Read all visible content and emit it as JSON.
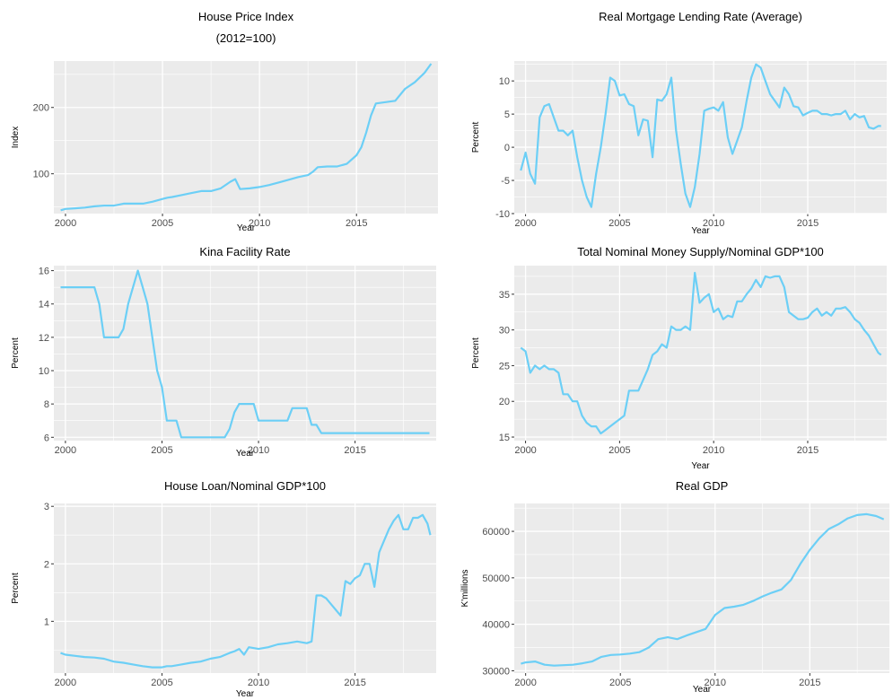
{
  "chart_data": [
    {
      "type": "line",
      "title": "House Price Index",
      "subtitle": "(2012=100)",
      "xlabel": "Year",
      "ylabel": "Index",
      "xlim": [
        1999.4,
        2019.2
      ],
      "ylim": [
        40,
        270
      ],
      "xticks": [
        2000,
        2005,
        2010,
        2015
      ],
      "yticks": [
        100,
        200
      ],
      "grid": true,
      "color": "#6ccff6",
      "series": [
        {
          "x": [
            1999.75,
            2000.0,
            2000.5,
            2001.0,
            2001.5,
            2002.0,
            2002.5,
            2003.0,
            2003.5,
            2004.0,
            2004.5,
            2005.0,
            2005.25,
            2005.5,
            2006.0,
            2006.5,
            2007.0,
            2007.5,
            2008.0,
            2008.5,
            2008.75,
            2009.0,
            2009.5,
            2010.0,
            2010.5,
            2011.0,
            2011.5,
            2012.0,
            2012.5,
            2012.75,
            2013.0,
            2013.5,
            2014.0,
            2014.5,
            2015.0,
            2015.25,
            2015.5,
            2015.75,
            2016.0,
            2016.5,
            2017.0,
            2017.5,
            2018.0,
            2018.5,
            2018.85
          ],
          "y": [
            45,
            47,
            48,
            49,
            51,
            52,
            52,
            55,
            55,
            55,
            58,
            62,
            64,
            65,
            68,
            71,
            74,
            74,
            78,
            88,
            92,
            77,
            78,
            80,
            83,
            87,
            91,
            95,
            98,
            103,
            110,
            111,
            111,
            115,
            128,
            140,
            162,
            188,
            206,
            208,
            210,
            228,
            238,
            252,
            266
          ]
        }
      ]
    },
    {
      "type": "line",
      "title": "Real Mortgage Lending Rate (Average)",
      "xlabel": "Year",
      "ylabel": "Percent",
      "xlim": [
        1999.4,
        2019.2
      ],
      "ylim": [
        -10,
        13
      ],
      "xticks": [
        2000,
        2005,
        2010,
        2015
      ],
      "yticks": [
        -10,
        -5,
        0,
        5,
        10
      ],
      "grid": true,
      "color": "#6ccff6",
      "series": [
        {
          "x": [
            1999.75,
            2000.0,
            2000.25,
            2000.5,
            2000.75,
            2001.0,
            2001.25,
            2001.5,
            2001.75,
            2002.0,
            2002.25,
            2002.5,
            2002.75,
            2003.0,
            2003.25,
            2003.5,
            2003.75,
            2004.0,
            2004.25,
            2004.5,
            2004.75,
            2005.0,
            2005.25,
            2005.5,
            2005.75,
            2006.0,
            2006.25,
            2006.5,
            2006.75,
            2007.0,
            2007.25,
            2007.5,
            2007.75,
            2008.0,
            2008.25,
            2008.5,
            2008.75,
            2009.0,
            2009.25,
            2009.5,
            2009.75,
            2010.0,
            2010.25,
            2010.5,
            2010.75,
            2011.0,
            2011.25,
            2011.5,
            2011.75,
            2012.0,
            2012.25,
            2012.5,
            2012.75,
            2013.0,
            2013.25,
            2013.5,
            2013.75,
            2014.0,
            2014.25,
            2014.5,
            2014.75,
            2015.0,
            2015.25,
            2015.5,
            2015.75,
            2016.0,
            2016.25,
            2016.5,
            2016.75,
            2017.0,
            2017.25,
            2017.5,
            2017.75,
            2018.0,
            2018.25,
            2018.5,
            2018.75,
            2018.9
          ],
          "y": [
            -3.5,
            -0.8,
            -4,
            -5.5,
            4.5,
            6.2,
            6.5,
            4.5,
            2.5,
            2.5,
            1.8,
            2.5,
            -1.5,
            -5,
            -7.5,
            -9,
            -4,
            0,
            5,
            10.5,
            10,
            7.8,
            8,
            6.5,
            6.2,
            1.8,
            4.2,
            4,
            -1.5,
            7.2,
            7,
            8,
            10.5,
            2.5,
            -2.5,
            -7,
            -9,
            -6,
            -1,
            5.5,
            5.8,
            6,
            5.5,
            6.8,
            1.5,
            -1,
            1,
            3,
            7,
            10.5,
            12.5,
            12,
            10,
            8,
            7,
            6,
            9,
            8,
            6.2,
            6,
            4.8,
            5.2,
            5.5,
            5.5,
            5,
            5,
            4.8,
            5,
            5,
            5.5,
            4.2,
            5,
            4.5,
            4.7,
            3,
            2.8,
            3.2,
            3.2
          ]
        }
      ]
    },
    {
      "type": "line",
      "title": "Kina Facility Rate",
      "xlabel": "Year",
      "ylabel": "Percent",
      "xlim": [
        1999.4,
        2019.2
      ],
      "ylim": [
        5.8,
        16.3
      ],
      "xticks": [
        2000,
        2005,
        2010,
        2015
      ],
      "yticks": [
        6,
        8,
        10,
        12,
        14,
        16
      ],
      "grid": true,
      "color": "#6ccff6",
      "series": [
        {
          "x": [
            1999.75,
            2000.5,
            2001.0,
            2001.5,
            2001.75,
            2002.0,
            2002.5,
            2002.75,
            2003.0,
            2003.25,
            2003.5,
            2003.75,
            2004.0,
            2004.25,
            2004.5,
            2004.75,
            2005.0,
            2005.25,
            2005.5,
            2005.75,
            2006.0,
            2006.5,
            2007.0,
            2007.5,
            2008.0,
            2008.25,
            2008.5,
            2008.75,
            2009.0,
            2009.5,
            2009.75,
            2010.0,
            2010.5,
            2011.0,
            2011.5,
            2011.75,
            2012.0,
            2012.5,
            2012.75,
            2013.0,
            2013.25,
            2013.5,
            2014.0,
            2015.0,
            2016.0,
            2017.0,
            2018.0,
            2018.85
          ],
          "y": [
            15,
            15,
            15,
            15,
            14,
            12,
            12,
            12,
            12.5,
            14,
            15,
            16,
            15,
            14,
            12,
            10,
            9,
            7,
            7,
            7,
            6,
            6,
            6,
            6,
            6,
            6,
            6.5,
            7.5,
            8,
            8,
            8,
            7,
            7,
            7,
            7,
            7.75,
            7.75,
            7.75,
            6.75,
            6.75,
            6.25,
            6.25,
            6.25,
            6.25,
            6.25,
            6.25,
            6.25,
            6.25
          ]
        }
      ]
    },
    {
      "type": "line",
      "title": "Total Nominal Money Supply/Nominal GDP*100",
      "xlabel": "Year",
      "ylabel": "Percent",
      "xlim": [
        1999.4,
        2019.2
      ],
      "ylim": [
        14.5,
        39
      ],
      "xticks": [
        2000,
        2005,
        2010,
        2015
      ],
      "yticks": [
        15,
        20,
        25,
        30,
        35
      ],
      "grid": true,
      "color": "#6ccff6",
      "series": [
        {
          "x": [
            1999.75,
            2000.0,
            2000.25,
            2000.5,
            2000.75,
            2001.0,
            2001.25,
            2001.5,
            2001.75,
            2002.0,
            2002.25,
            2002.5,
            2002.75,
            2003.0,
            2003.25,
            2003.5,
            2003.75,
            2004.0,
            2004.25,
            2004.5,
            2004.75,
            2005.0,
            2005.25,
            2005.5,
            2005.75,
            2006.0,
            2006.25,
            2006.5,
            2006.75,
            2007.0,
            2007.25,
            2007.5,
            2007.75,
            2008.0,
            2008.25,
            2008.5,
            2008.75,
            2009.0,
            2009.25,
            2009.5,
            2009.75,
            2010.0,
            2010.25,
            2010.5,
            2010.75,
            2011.0,
            2011.25,
            2011.5,
            2011.75,
            2012.0,
            2012.25,
            2012.5,
            2012.75,
            2013.0,
            2013.25,
            2013.5,
            2013.75,
            2014.0,
            2014.25,
            2014.5,
            2014.75,
            2015.0,
            2015.25,
            2015.5,
            2015.75,
            2016.0,
            2016.25,
            2016.5,
            2016.75,
            2017.0,
            2017.25,
            2017.5,
            2017.75,
            2018.0,
            2018.25,
            2018.5,
            2018.75,
            2018.9
          ],
          "y": [
            27.5,
            27,
            24,
            25,
            24.5,
            25,
            24.5,
            24.5,
            24,
            21,
            21,
            20,
            20,
            18,
            17,
            16.5,
            16.5,
            15.5,
            16,
            16.5,
            17,
            17.5,
            18,
            21.5,
            21.5,
            21.5,
            23,
            24.5,
            26.5,
            27,
            28,
            27.5,
            30.5,
            30,
            30,
            30.5,
            30,
            38,
            33.8,
            34.5,
            35,
            32.5,
            33,
            31.5,
            32,
            31.8,
            34,
            34,
            35,
            35.8,
            37,
            36,
            37.5,
            37.3,
            37.5,
            37.5,
            36,
            32.5,
            32,
            31.5,
            31.5,
            31.7,
            32.5,
            33,
            32,
            32.5,
            32,
            33,
            33,
            33.2,
            32.5,
            31.5,
            31,
            30,
            29.2,
            28,
            26.8,
            26.5
          ]
        }
      ]
    },
    {
      "type": "line",
      "title": "House Loan/Nominal GDP*100",
      "xlabel": "Year",
      "ylabel": "Percent",
      "xlim": [
        1999.4,
        2019.2
      ],
      "ylim": [
        0.1,
        3.05
      ],
      "xticks": [
        2000,
        2005,
        2010,
        2015
      ],
      "yticks": [
        1,
        2,
        3
      ],
      "grid": true,
      "color": "#6ccff6",
      "series": [
        {
          "x": [
            1999.75,
            2000.0,
            2000.5,
            2001.0,
            2001.5,
            2002.0,
            2002.5,
            2003.0,
            2003.5,
            2004.0,
            2004.5,
            2005.0,
            2005.25,
            2005.5,
            2006.0,
            2006.5,
            2007.0,
            2007.5,
            2008.0,
            2008.5,
            2008.75,
            2009.0,
            2009.25,
            2009.5,
            2010.0,
            2010.5,
            2011.0,
            2011.5,
            2012.0,
            2012.5,
            2012.75,
            2013.0,
            2013.25,
            2013.5,
            2013.75,
            2014.0,
            2014.25,
            2014.5,
            2014.75,
            2015.0,
            2015.25,
            2015.5,
            2015.75,
            2016.0,
            2016.25,
            2016.5,
            2016.75,
            2017.0,
            2017.25,
            2017.5,
            2017.75,
            2018.0,
            2018.25,
            2018.5,
            2018.75,
            2018.9
          ],
          "y": [
            0.45,
            0.42,
            0.4,
            0.38,
            0.37,
            0.35,
            0.3,
            0.28,
            0.25,
            0.22,
            0.2,
            0.2,
            0.22,
            0.22,
            0.25,
            0.28,
            0.3,
            0.35,
            0.38,
            0.45,
            0.48,
            0.52,
            0.42,
            0.55,
            0.52,
            0.55,
            0.6,
            0.62,
            0.65,
            0.62,
            0.65,
            1.45,
            1.45,
            1.4,
            1.3,
            1.2,
            1.1,
            1.7,
            1.65,
            1.75,
            1.8,
            2.0,
            2.0,
            1.6,
            2.2,
            2.4,
            2.6,
            2.75,
            2.85,
            2.6,
            2.6,
            2.8,
            2.8,
            2.85,
            2.7,
            2.5
          ]
        }
      ]
    },
    {
      "type": "line",
      "title": "Real GDP",
      "xlabel": "Year",
      "ylabel": "K'millions",
      "xlim": [
        1999.4,
        2019.2
      ],
      "ylim": [
        29500,
        66000
      ],
      "xticks": [
        2000,
        2005,
        2010,
        2015
      ],
      "yticks": [
        30000,
        40000,
        50000,
        60000
      ],
      "grid": true,
      "color": "#6ccff6",
      "series": [
        {
          "x": [
            1999.75,
            2000.0,
            2000.5,
            2001.0,
            2001.5,
            2002.0,
            2002.5,
            2003.0,
            2003.5,
            2004.0,
            2004.5,
            2005.0,
            2005.5,
            2006.0,
            2006.5,
            2007.0,
            2007.5,
            2008.0,
            2008.5,
            2009.0,
            2009.5,
            2010.0,
            2010.5,
            2011.0,
            2011.5,
            2012.0,
            2012.5,
            2013.0,
            2013.5,
            2014.0,
            2014.5,
            2015.0,
            2015.5,
            2016.0,
            2016.5,
            2017.0,
            2017.5,
            2018.0,
            2018.5,
            2018.9
          ],
          "y": [
            31500,
            31800,
            32000,
            31300,
            31100,
            31200,
            31300,
            31600,
            32000,
            33000,
            33400,
            33500,
            33700,
            34000,
            35000,
            36800,
            37200,
            36800,
            37600,
            38300,
            39000,
            42000,
            43500,
            43800,
            44200,
            45000,
            46000,
            46800,
            47500,
            49500,
            53000,
            56000,
            58500,
            60500,
            61500,
            62800,
            63500,
            63700,
            63300,
            62600
          ]
        }
      ]
    }
  ]
}
